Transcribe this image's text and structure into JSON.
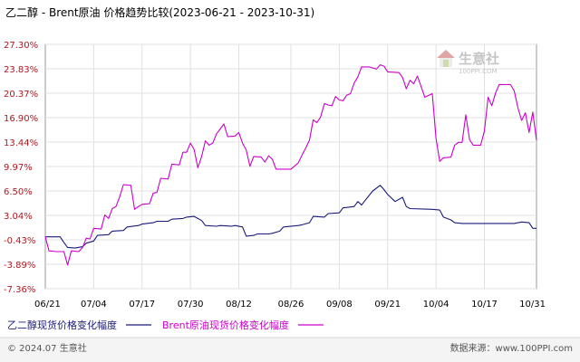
{
  "header": {
    "title": "乙二醇 - Brent原油 价格趋势比较(2023-06-21 - 2023-10-31)"
  },
  "watermark": {
    "brand": "生意社",
    "url": "100PPI.COM",
    "icon": "house-logo-icon"
  },
  "footer": {
    "copyright": "© 2024.07 生意社",
    "site": "数据来源：www.100PPI.com"
  },
  "chart_data": {
    "type": "line",
    "title": "乙二醇 - Brent原油 价格趋势比较(2023-06-21 - 2023-10-31)",
    "xlabel": "",
    "ylabel": "",
    "x_start": "2023-06-21",
    "x_end": "2023-10-31",
    "x_ticks": [
      {
        "date": "2023-06-21",
        "label": "06/21"
      },
      {
        "date": "2023-07-04",
        "label": "07/04"
      },
      {
        "date": "2023-07-17",
        "label": "07/17"
      },
      {
        "date": "2023-07-30",
        "label": "07/30"
      },
      {
        "date": "2023-08-12",
        "label": "08/12"
      },
      {
        "date": "2023-08-26",
        "label": "08/26"
      },
      {
        "date": "2023-09-08",
        "label": "09/08"
      },
      {
        "date": "2023-09-21",
        "label": "09/21"
      },
      {
        "date": "2023-10-04",
        "label": "10/04"
      },
      {
        "date": "2023-10-17",
        "label": "10/17"
      },
      {
        "date": "2023-10-31",
        "label": "10/31"
      }
    ],
    "y_ticks": [
      "27.30%",
      "23.83%",
      "20.37%",
      "16.90%",
      "13.44%",
      "9.97%",
      "6.50%",
      "3.04%",
      "-0.43%",
      "-3.89%",
      "-7.36%"
    ],
    "ylim": [
      -7.36,
      27.3
    ],
    "grid": true,
    "legend_position": "bottom",
    "series": [
      {
        "name": "乙二醇现货价格变化幅度",
        "color": "#1a1a7a",
        "points": [
          [
            "2023-06-21",
            0.0
          ],
          [
            "2023-06-25",
            0.0
          ],
          [
            "2023-06-26",
            -0.8
          ],
          [
            "2023-06-27",
            -1.5
          ],
          [
            "2023-06-29",
            -1.6
          ],
          [
            "2023-07-01",
            -1.4
          ],
          [
            "2023-07-02",
            -0.9
          ],
          [
            "2023-07-04",
            -0.6
          ],
          [
            "2023-07-05",
            0.2
          ],
          [
            "2023-07-08",
            0.3
          ],
          [
            "2023-07-09",
            0.8
          ],
          [
            "2023-07-12",
            0.9
          ],
          [
            "2023-07-13",
            1.4
          ],
          [
            "2023-07-16",
            1.6
          ],
          [
            "2023-07-17",
            1.8
          ],
          [
            "2023-07-20",
            2.0
          ],
          [
            "2023-07-21",
            2.2
          ],
          [
            "2023-07-24",
            2.2
          ],
          [
            "2023-07-25",
            2.5
          ],
          [
            "2023-07-28",
            2.6
          ],
          [
            "2023-07-29",
            2.8
          ],
          [
            "2023-07-31",
            2.9
          ],
          [
            "2023-08-01",
            2.6
          ],
          [
            "2023-08-02",
            2.3
          ],
          [
            "2023-08-03",
            1.6
          ],
          [
            "2023-08-06",
            1.5
          ],
          [
            "2023-08-07",
            1.6
          ],
          [
            "2023-08-10",
            1.5
          ],
          [
            "2023-08-11",
            1.6
          ],
          [
            "2023-08-13",
            1.4
          ],
          [
            "2023-08-14",
            0.1
          ],
          [
            "2023-08-16",
            0.2
          ],
          [
            "2023-08-17",
            0.4
          ],
          [
            "2023-08-20",
            0.4
          ],
          [
            "2023-08-21",
            0.5
          ],
          [
            "2023-08-23",
            0.8
          ],
          [
            "2023-08-24",
            1.4
          ],
          [
            "2023-08-28",
            1.6
          ],
          [
            "2023-08-29",
            1.7
          ],
          [
            "2023-08-31",
            2.0
          ],
          [
            "2023-09-01",
            2.9
          ],
          [
            "2023-09-04",
            2.8
          ],
          [
            "2023-09-05",
            3.3
          ],
          [
            "2023-09-08",
            3.4
          ],
          [
            "2023-09-09",
            4.1
          ],
          [
            "2023-09-12",
            4.3
          ],
          [
            "2023-09-13",
            5.0
          ],
          [
            "2023-09-14",
            4.5
          ],
          [
            "2023-09-15",
            5.2
          ],
          [
            "2023-09-17",
            6.5
          ],
          [
            "2023-09-19",
            7.3
          ],
          [
            "2023-09-20",
            6.7
          ],
          [
            "2023-09-21",
            6.0
          ],
          [
            "2023-09-23",
            5.0
          ],
          [
            "2023-09-25",
            5.6
          ],
          [
            "2023-09-26",
            4.3
          ],
          [
            "2023-09-27",
            4.0
          ],
          [
            "2023-10-03",
            3.9
          ],
          [
            "2023-10-05",
            3.8
          ],
          [
            "2023-10-06",
            2.8
          ],
          [
            "2023-10-08",
            2.4
          ],
          [
            "2023-10-09",
            2.0
          ],
          [
            "2023-10-11",
            1.9
          ],
          [
            "2023-10-25",
            1.9
          ],
          [
            "2023-10-27",
            2.1
          ],
          [
            "2023-10-29",
            2.0
          ],
          [
            "2023-10-30",
            1.2
          ],
          [
            "2023-10-31",
            1.2
          ]
        ]
      },
      {
        "name": "Brent原油现货价格变化幅度",
        "color": "#cc00cc",
        "points": [
          [
            "2023-06-21",
            0.0
          ],
          [
            "2023-06-22",
            -2.0
          ],
          [
            "2023-06-24",
            -2.1
          ],
          [
            "2023-06-26",
            -2.1
          ],
          [
            "2023-06-27",
            -4.0
          ],
          [
            "2023-06-28",
            -2.0
          ],
          [
            "2023-06-30",
            -2.1
          ],
          [
            "2023-07-01",
            -1.5
          ],
          [
            "2023-07-02",
            -0.2
          ],
          [
            "2023-07-03",
            -0.3
          ],
          [
            "2023-07-04",
            1.2
          ],
          [
            "2023-07-06",
            1.1
          ],
          [
            "2023-07-07",
            3.1
          ],
          [
            "2023-07-08",
            2.6
          ],
          [
            "2023-07-09",
            4.0
          ],
          [
            "2023-07-10",
            4.3
          ],
          [
            "2023-07-11",
            5.7
          ],
          [
            "2023-07-12",
            7.4
          ],
          [
            "2023-07-14",
            7.3
          ],
          [
            "2023-07-15",
            3.9
          ],
          [
            "2023-07-16",
            4.3
          ],
          [
            "2023-07-17",
            4.6
          ],
          [
            "2023-07-19",
            4.7
          ],
          [
            "2023-07-20",
            6.2
          ],
          [
            "2023-07-21",
            6.3
          ],
          [
            "2023-07-22",
            8.3
          ],
          [
            "2023-07-24",
            8.2
          ],
          [
            "2023-07-25",
            10.3
          ],
          [
            "2023-07-27",
            10.2
          ],
          [
            "2023-07-28",
            12.0
          ],
          [
            "2023-07-29",
            12.0
          ],
          [
            "2023-07-30",
            13.3
          ],
          [
            "2023-07-31",
            12.4
          ],
          [
            "2023-08-01",
            9.8
          ],
          [
            "2023-08-02",
            11.4
          ],
          [
            "2023-08-03",
            13.6
          ],
          [
            "2023-08-04",
            13.0
          ],
          [
            "2023-08-05",
            13.3
          ],
          [
            "2023-08-06",
            14.6
          ],
          [
            "2023-08-07",
            15.3
          ],
          [
            "2023-08-08",
            16.0
          ],
          [
            "2023-08-09",
            14.2
          ],
          [
            "2023-08-11",
            14.3
          ],
          [
            "2023-08-12",
            14.8
          ],
          [
            "2023-08-13",
            13.3
          ],
          [
            "2023-08-14",
            12.3
          ],
          [
            "2023-08-15",
            10.0
          ],
          [
            "2023-08-16",
            11.4
          ],
          [
            "2023-08-18",
            11.3
          ],
          [
            "2023-08-19",
            10.6
          ],
          [
            "2023-08-20",
            11.5
          ],
          [
            "2023-08-21",
            11.0
          ],
          [
            "2023-08-22",
            9.6
          ],
          [
            "2023-08-26",
            9.6
          ],
          [
            "2023-08-28",
            10.5
          ],
          [
            "2023-08-29",
            11.6
          ],
          [
            "2023-08-30",
            12.6
          ],
          [
            "2023-08-31",
            13.7
          ],
          [
            "2023-09-01",
            16.6
          ],
          [
            "2023-09-02",
            16.2
          ],
          [
            "2023-09-03",
            17.0
          ],
          [
            "2023-09-04",
            18.9
          ],
          [
            "2023-09-05",
            18.7
          ],
          [
            "2023-09-06",
            18.6
          ],
          [
            "2023-09-07",
            19.9
          ],
          [
            "2023-09-08",
            19.4
          ],
          [
            "2023-09-09",
            19.3
          ],
          [
            "2023-09-10",
            20.1
          ],
          [
            "2023-09-11",
            20.3
          ],
          [
            "2023-09-12",
            21.8
          ],
          [
            "2023-09-13",
            22.7
          ],
          [
            "2023-09-14",
            24.1
          ],
          [
            "2023-09-16",
            24.1
          ],
          [
            "2023-09-18",
            23.8
          ],
          [
            "2023-09-19",
            24.4
          ],
          [
            "2023-09-20",
            24.2
          ],
          [
            "2023-09-21",
            23.4
          ],
          [
            "2023-09-24",
            23.3
          ],
          [
            "2023-09-25",
            22.6
          ],
          [
            "2023-09-26",
            21.0
          ],
          [
            "2023-09-27",
            22.2
          ],
          [
            "2023-09-28",
            21.7
          ],
          [
            "2023-09-29",
            22.8
          ],
          [
            "2023-09-30",
            21.3
          ],
          [
            "2023-10-01",
            19.8
          ],
          [
            "2023-10-03",
            20.3
          ],
          [
            "2023-10-04",
            14.0
          ],
          [
            "2023-10-05",
            10.7
          ],
          [
            "2023-10-06",
            11.2
          ],
          [
            "2023-10-08",
            11.3
          ],
          [
            "2023-10-09",
            13.0
          ],
          [
            "2023-10-10",
            13.4
          ],
          [
            "2023-10-11",
            13.4
          ],
          [
            "2023-10-12",
            17.3
          ],
          [
            "2023-10-13",
            13.8
          ],
          [
            "2023-10-14",
            13.0
          ],
          [
            "2023-10-16",
            13.0
          ],
          [
            "2023-10-17",
            15.0
          ],
          [
            "2023-10-18",
            19.8
          ],
          [
            "2023-10-19",
            18.6
          ],
          [
            "2023-10-20",
            20.4
          ],
          [
            "2023-10-21",
            21.6
          ],
          [
            "2023-10-24",
            21.6
          ],
          [
            "2023-10-25",
            20.7
          ],
          [
            "2023-10-26",
            18.3
          ],
          [
            "2023-10-27",
            16.5
          ],
          [
            "2023-10-28",
            17.6
          ],
          [
            "2023-10-29",
            14.8
          ],
          [
            "2023-10-30",
            17.7
          ],
          [
            "2023-10-31",
            13.7
          ]
        ]
      }
    ]
  }
}
